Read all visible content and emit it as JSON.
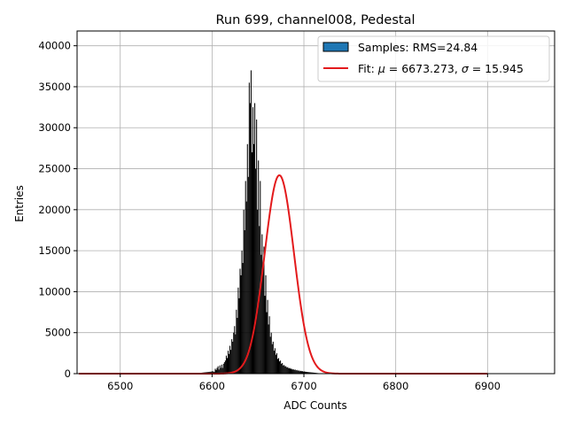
{
  "chart_data": {
    "type": "histogram",
    "title": "Run 699, channel008, Pedestal",
    "xlabel": "ADC Counts",
    "ylabel": "Entries",
    "xlim": [
      6453,
      6973
    ],
    "ylim": [
      0,
      41800
    ],
    "xticks": [
      6500,
      6600,
      6700,
      6800,
      6900
    ],
    "yticks": [
      0,
      5000,
      10000,
      15000,
      20000,
      25000,
      30000,
      35000,
      40000
    ],
    "grid": true,
    "legend_position": "top-right",
    "colors": {
      "histogram": "#000000",
      "legend_patch": "#1f77b4",
      "fit": "#e31a1c",
      "grid": "#b0b0b0"
    },
    "histogram": {
      "x_start": 6600,
      "bin_width": 1,
      "counts": [
        300,
        250,
        200,
        600,
        450,
        700,
        900,
        500,
        1000,
        700,
        1100,
        700,
        1200,
        1400,
        1600,
        2200,
        1900,
        2800,
        2400,
        3400,
        2900,
        4200,
        3900,
        5000,
        5800,
        4800,
        7800,
        6800,
        10500,
        9200,
        12800,
        12000,
        15000,
        13500,
        20000,
        17500,
        23500,
        21000,
        28000,
        24000,
        35500,
        33000,
        37000,
        27000,
        32500,
        28000,
        33000,
        25000,
        31000,
        20000,
        26000,
        18000,
        23500,
        14500,
        17000,
        13000,
        15500,
        9500,
        12000,
        7500,
        9000,
        6000,
        7000,
        4500,
        5000,
        3600,
        3900,
        2800,
        3100,
        2300,
        2500,
        1800,
        1900,
        1500,
        1600,
        1200,
        1300,
        1000,
        1050,
        900,
        900,
        750,
        800,
        650,
        700,
        600,
        600,
        500,
        550,
        450,
        500,
        400,
        450,
        350,
        400,
        300,
        350,
        300,
        300,
        250,
        250
      ],
      "tail_low": {
        "x_from": 6580,
        "x_to": 6600,
        "level": 250
      },
      "tail_high": {
        "x_from": 6700,
        "x_to": 6720,
        "level": 250
      }
    },
    "fit": {
      "type": "gaussian",
      "mu": 6673.273,
      "sigma": 15.945,
      "amplitude": 24200,
      "x_range": [
        6455,
        6900
      ]
    },
    "legend": [
      {
        "kind": "patch",
        "label": "Samples: RMS=24.84"
      },
      {
        "kind": "line",
        "label_prefix": "Fit: ",
        "mu_symbol": "μ",
        "mu_text": " = 6673.273, ",
        "sigma_symbol": "σ",
        "sigma_text": " = 15.945"
      }
    ]
  }
}
